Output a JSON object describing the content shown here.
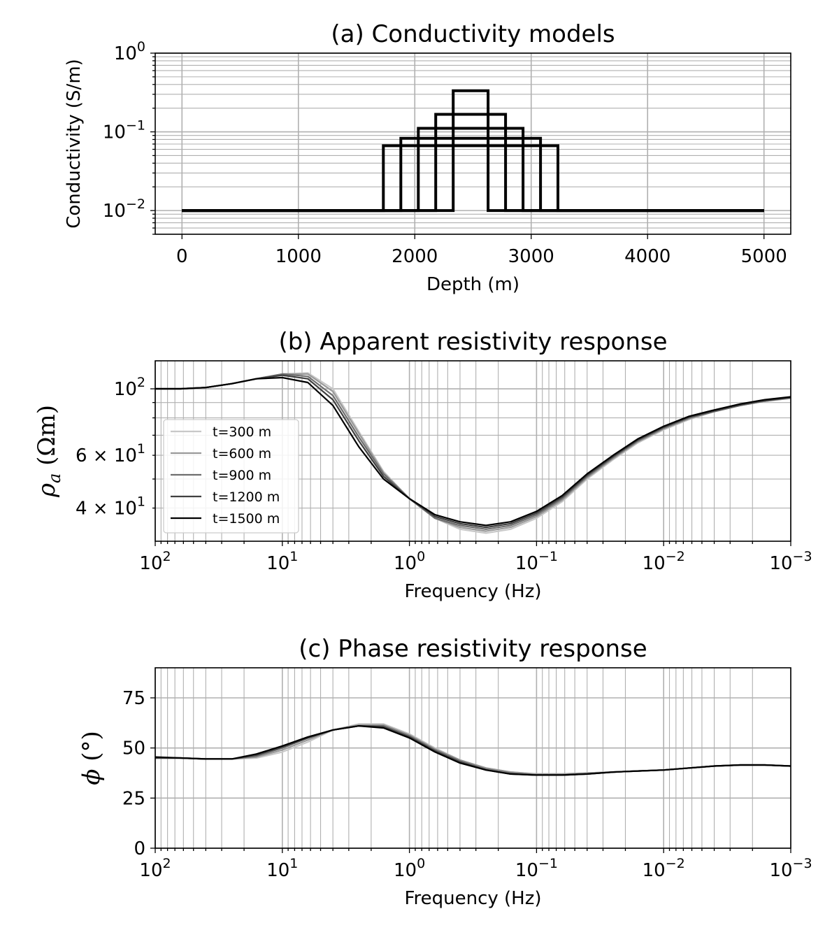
{
  "chart_data": [
    {
      "id": "a",
      "type": "line",
      "title": "(a) Conductivity models",
      "xlabel": "Depth (m)",
      "ylabel": "Conductivity (S/m)",
      "xscale": "linear",
      "yscale": "log",
      "xlim": [
        -230,
        5230
      ],
      "ylim": [
        0.005,
        1
      ],
      "grid": true,
      "xticks": [
        {
          "v": 0,
          "label": "0"
        },
        {
          "v": 1000,
          "label": "1000"
        },
        {
          "v": 2000,
          "label": "2000"
        },
        {
          "v": 3000,
          "label": "3000"
        },
        {
          "v": 4000,
          "label": "4000"
        },
        {
          "v": 5000,
          "label": "5000"
        }
      ],
      "yticks": [
        {
          "v": 1,
          "base": "10",
          "exp": "0"
        },
        {
          "v": 0.1,
          "base": "10",
          "exp": "−1"
        },
        {
          "v": 0.01,
          "base": "10",
          "exp": "−2"
        }
      ],
      "series": [
        {
          "color": "#000000",
          "x": [
            0,
            2330,
            2330,
            2630,
            2630,
            5000
          ],
          "y": [
            0.01,
            0.01,
            0.333,
            0.333,
            0.01,
            0.01
          ]
        },
        {
          "color": "#000000",
          "x": [
            0,
            2180,
            2180,
            2780,
            2780,
            5000
          ],
          "y": [
            0.01,
            0.01,
            0.167,
            0.167,
            0.01,
            0.01
          ]
        },
        {
          "color": "#000000",
          "x": [
            0,
            2030,
            2030,
            2930,
            2930,
            5000
          ],
          "y": [
            0.01,
            0.01,
            0.111,
            0.111,
            0.01,
            0.01
          ]
        },
        {
          "color": "#000000",
          "x": [
            0,
            1880,
            1880,
            3080,
            3080,
            5000
          ],
          "y": [
            0.01,
            0.01,
            0.083,
            0.083,
            0.01,
            0.01
          ]
        },
        {
          "color": "#000000",
          "x": [
            0,
            1730,
            1730,
            3230,
            3230,
            5000
          ],
          "y": [
            0.01,
            0.01,
            0.0667,
            0.0667,
            0.01,
            0.01
          ]
        }
      ]
    },
    {
      "id": "b",
      "type": "line",
      "title": "(b) Apparent resistivity response",
      "xlabel": "Frequency (Hz)",
      "ylabel": "ρa (Ωm)",
      "xscale": "log",
      "yscale": "log",
      "xlim": [
        100,
        0.001
      ],
      "ylim": [
        31,
        124
      ],
      "grid": true,
      "legend_position": "left",
      "xticks": [
        {
          "v": 100,
          "base": "10",
          "exp": "2"
        },
        {
          "v": 10,
          "base": "10",
          "exp": "1"
        },
        {
          "v": 1,
          "base": "10",
          "exp": "0"
        },
        {
          "v": 0.1,
          "base": "10",
          "exp": "−1"
        },
        {
          "v": 0.01,
          "base": "10",
          "exp": "−2"
        },
        {
          "v": 0.001,
          "base": "10",
          "exp": "−3"
        }
      ],
      "yticks": [
        {
          "v": 100,
          "mant": "",
          "base": "10",
          "exp": "2"
        },
        {
          "v": 60,
          "mant": "6 × ",
          "base": "10",
          "exp": "1"
        },
        {
          "v": 40,
          "mant": "4 × ",
          "base": "10",
          "exp": "1"
        }
      ],
      "x": [
        100,
        63,
        40,
        25,
        16,
        10,
        6.3,
        4,
        2.5,
        1.6,
        1,
        0.63,
        0.4,
        0.25,
        0.16,
        0.1,
        0.063,
        0.04,
        0.025,
        0.016,
        0.01,
        0.0063,
        0.004,
        0.0025,
        0.0016,
        0.001
      ],
      "series": [
        {
          "name": "t=300 m",
          "color": "#c8c8c8",
          "values": [
            100,
            100,
            101,
            104,
            108,
            112,
            113,
            100,
            72,
            53,
            43,
            37,
            34,
            33,
            34,
            37,
            42,
            50,
            58,
            66,
            73,
            79,
            84,
            88,
            91,
            93
          ]
        },
        {
          "name": "t=600 m",
          "color": "#9a9a9a",
          "values": [
            100,
            100,
            101,
            104,
            108,
            112,
            112,
            98,
            71,
            52.5,
            43,
            37,
            34.5,
            33.5,
            34.5,
            37.5,
            42.5,
            50.5,
            58.5,
            66.5,
            73.5,
            79.5,
            84,
            88,
            91,
            93
          ]
        },
        {
          "name": "t=900 m",
          "color": "#6e6e6e",
          "values": [
            100,
            100,
            101,
            104,
            108,
            112,
            110,
            95,
            69,
            52,
            43,
            37,
            35,
            34,
            35,
            38,
            43,
            51,
            59,
            67,
            74,
            80,
            84,
            88,
            91,
            93.5
          ]
        },
        {
          "name": "t=1200 m",
          "color": "#404040",
          "values": [
            100,
            100,
            101,
            104,
            108,
            111,
            108,
            92,
            67,
            51,
            43,
            37.5,
            35.5,
            34.5,
            35.5,
            38.5,
            43.5,
            51.5,
            59.5,
            67.5,
            74.5,
            80.5,
            84.5,
            88.5,
            91.5,
            93.5
          ]
        },
        {
          "name": "t=1500 m",
          "color": "#000000",
          "values": [
            100,
            100,
            101,
            104,
            108,
            109,
            105,
            88,
            64,
            50,
            43,
            38,
            36,
            35,
            36,
            39,
            44,
            52,
            60,
            68,
            75,
            81,
            85,
            89,
            92,
            94
          ]
        }
      ]
    },
    {
      "id": "c",
      "type": "line",
      "title": "(c) Phase resistivity response",
      "xlabel": "Frequency (Hz)",
      "ylabel": "ϕ (°)",
      "xscale": "log",
      "yscale": "linear",
      "xlim": [
        100,
        0.001
      ],
      "ylim": [
        0,
        90
      ],
      "grid": true,
      "xticks": [
        {
          "v": 100,
          "base": "10",
          "exp": "2"
        },
        {
          "v": 10,
          "base": "10",
          "exp": "1"
        },
        {
          "v": 1,
          "base": "10",
          "exp": "0"
        },
        {
          "v": 0.1,
          "base": "10",
          "exp": "−1"
        },
        {
          "v": 0.01,
          "base": "10",
          "exp": "−2"
        },
        {
          "v": 0.001,
          "base": "10",
          "exp": "−3"
        }
      ],
      "yticks": [
        {
          "v": 0,
          "label": "0"
        },
        {
          "v": 25,
          "label": "25"
        },
        {
          "v": 50,
          "label": "50"
        },
        {
          "v": 75,
          "label": "75"
        }
      ],
      "x": [
        100,
        63,
        40,
        25,
        16,
        10,
        6.3,
        4,
        2.5,
        1.6,
        1,
        0.63,
        0.4,
        0.25,
        0.16,
        0.1,
        0.063,
        0.04,
        0.025,
        0.016,
        0.01,
        0.0063,
        0.004,
        0.0025,
        0.0016,
        0.001
      ],
      "series": [
        {
          "name": "t=300 m",
          "color": "#c8c8c8",
          "values": [
            45,
            45,
            44.5,
            44.5,
            45,
            48,
            53,
            59,
            62,
            62,
            57,
            50,
            44,
            40,
            38,
            37,
            37,
            37.5,
            38,
            38.5,
            39,
            40,
            41,
            41.5,
            41.5,
            41
          ]
        },
        {
          "name": "t=600 m",
          "color": "#9a9a9a",
          "values": [
            45,
            45,
            44.5,
            44.5,
            45.5,
            49,
            54,
            59,
            61.5,
            61.5,
            56.5,
            49.5,
            44,
            40,
            38,
            37,
            37,
            37.5,
            38,
            38.5,
            39,
            40,
            41,
            41.5,
            41.5,
            41
          ]
        },
        {
          "name": "t=900 m",
          "color": "#6e6e6e",
          "values": [
            45,
            45,
            44.5,
            44.5,
            46,
            50,
            55,
            59,
            61,
            61,
            56,
            49,
            43.5,
            39.5,
            37.5,
            36.5,
            36.5,
            37,
            38,
            38.5,
            39,
            40,
            41,
            41.5,
            41.5,
            41
          ]
        },
        {
          "name": "t=1200 m",
          "color": "#404040",
          "values": [
            45,
            45,
            44.5,
            44.5,
            46.5,
            50.5,
            55,
            59,
            61,
            60.5,
            55.5,
            48.5,
            43,
            39,
            37,
            36.5,
            36.5,
            37,
            38,
            38.5,
            39,
            40,
            41,
            41.5,
            41.5,
            41
          ]
        },
        {
          "name": "t=1500 m",
          "color": "#000000",
          "values": [
            45.5,
            45,
            44.5,
            44.5,
            47,
            51,
            55.5,
            59,
            61,
            60,
            55,
            48,
            42.5,
            39,
            37,
            36.5,
            36.5,
            37,
            38,
            38.5,
            39,
            40,
            41,
            41.5,
            41.5,
            41
          ]
        }
      ]
    }
  ]
}
